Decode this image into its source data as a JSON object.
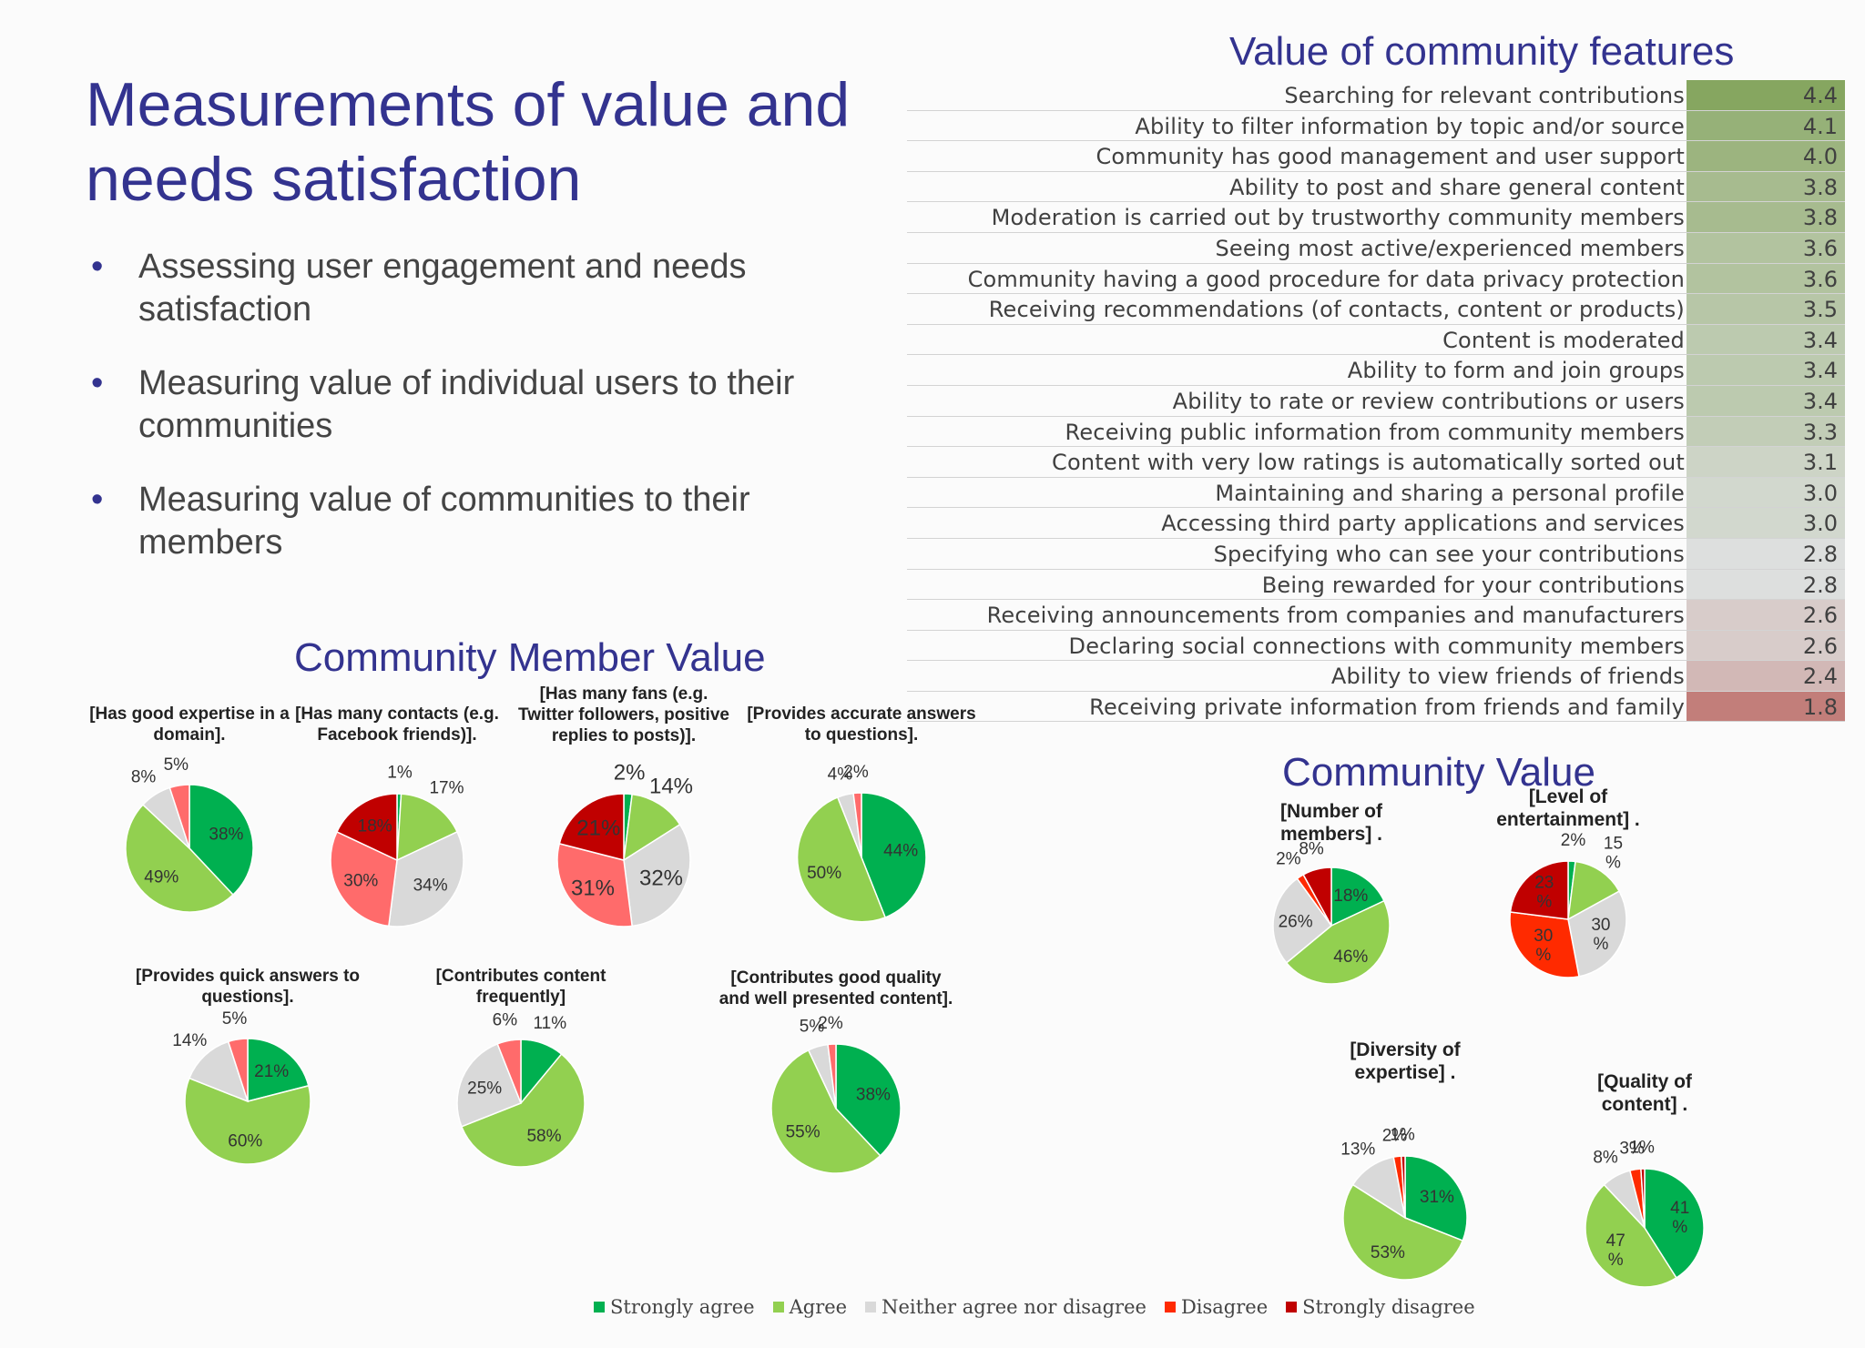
{
  "title": "Measurements of value and needs satisfaction",
  "bullets": [
    "Assessing user engagement and needs satisfaction",
    "Measuring value of individual users to their communities",
    "Measuring value of communities to their members"
  ],
  "colors": {
    "strongly_agree": "#00b050",
    "agree": "#92d050",
    "neutral": "#d9d9d9",
    "disagree": "#ff2a00",
    "strongly_disagree": "#c00000",
    "disagree_light": "#ff6b6b",
    "heading": "#33338f"
  },
  "headings": {
    "table": "Value of community features",
    "member": "Community Member Value",
    "community": "Community Value"
  },
  "legend": [
    "Strongly agree",
    "Agree",
    "Neither agree nor disagree",
    "Disagree",
    "Strongly disagree"
  ],
  "chart_data": [
    {
      "type": "table",
      "title": "Value of community features",
      "rows": [
        {
          "label": "Searching for relevant contributions",
          "value": "4.4"
        },
        {
          "label": "Ability to filter information by topic and/or source",
          "value": "4.1"
        },
        {
          "label": "Community has good management and user support",
          "value": "4.0"
        },
        {
          "label": "Ability to post and share general content",
          "value": "3.8"
        },
        {
          "label": "Moderation is carried out by trustworthy community members",
          "value": "3.8"
        },
        {
          "label": "Seeing most active/experienced members",
          "value": "3.6"
        },
        {
          "label": "Community having a good procedure for data privacy protection",
          "value": "3.6"
        },
        {
          "label": "Receiving recommendations (of contacts, content or products)",
          "value": "3.5"
        },
        {
          "label": "Content is moderated",
          "value": "3.4"
        },
        {
          "label": "Ability to form and join groups",
          "value": "3.4"
        },
        {
          "label": "Ability to rate or review contributions or users",
          "value": "3.4"
        },
        {
          "label": "Receiving public information from community members",
          "value": "3.3"
        },
        {
          "label": "Content with very low ratings is automatically sorted out",
          "value": "3.1"
        },
        {
          "label": "Maintaining and sharing a personal profile",
          "value": "3.0"
        },
        {
          "label": "Accessing third party applications and services",
          "value": "3.0"
        },
        {
          "label": "Specifying who can see your contributions",
          "value": "2.8"
        },
        {
          "label": "Being rewarded for your contributions",
          "value": "2.8"
        },
        {
          "label": "Receiving announcements from companies and manufacturers",
          "value": "2.6"
        },
        {
          "label": "Declaring social connections with community members",
          "value": "2.6"
        },
        {
          "label": "Ability to view friends of friends",
          "value": "2.4"
        },
        {
          "label": "Receiving private information from friends and family",
          "value": "1.8"
        }
      ]
    },
    {
      "type": "pie",
      "group": "Community Member Value",
      "title": [
        "[Has good expertise in a",
        "domain]."
      ],
      "slices": [
        {
          "category": "Strongly agree",
          "value": 38,
          "label": "38%"
        },
        {
          "category": "Agree",
          "value": 49,
          "label": "49%"
        },
        {
          "category": "Neither agree nor disagree",
          "value": 8,
          "label": "8%"
        },
        {
          "category": "Disagree",
          "value": 5,
          "label": "5%"
        }
      ]
    },
    {
      "type": "pie",
      "group": "Community Member Value",
      "title": [
        "[Has many contacts (e.g.",
        "Facebook friends)]."
      ],
      "slices": [
        {
          "category": "Strongly agree",
          "value": 1,
          "label": "1%"
        },
        {
          "category": "Agree",
          "value": 17,
          "label": "17%"
        },
        {
          "category": "Neither agree nor disagree",
          "value": 34,
          "label": "34%"
        },
        {
          "category": "Disagree",
          "value": 30,
          "label": "30%"
        },
        {
          "category": "Strongly disagree",
          "value": 18,
          "label": "18%"
        }
      ]
    },
    {
      "type": "pie",
      "group": "Community Member Value",
      "title": [
        "[Has many fans (e.g.",
        "Twitter followers, positive",
        "replies to posts)]."
      ],
      "slices": [
        {
          "category": "Strongly agree",
          "value": 2,
          "label": "2%"
        },
        {
          "category": "Agree",
          "value": 14,
          "label": "14%"
        },
        {
          "category": "Neither agree nor disagree",
          "value": 32,
          "label": "32%"
        },
        {
          "category": "Disagree",
          "value": 31,
          "label": "31%"
        },
        {
          "category": "Strongly disagree",
          "value": 21,
          "label": "21%"
        }
      ]
    },
    {
      "type": "pie",
      "group": "Community Member Value",
      "title": [
        "[Provides accurate answers",
        "to questions]."
      ],
      "slices": [
        {
          "category": "Strongly agree",
          "value": 44,
          "label": "44%"
        },
        {
          "category": "Agree",
          "value": 50,
          "label": "50%"
        },
        {
          "category": "Neither agree nor disagree",
          "value": 4,
          "label": "4%"
        },
        {
          "category": "Disagree",
          "value": 2,
          "label": "2%"
        }
      ]
    },
    {
      "type": "pie",
      "group": "Community Member Value",
      "title": [
        "[Provides quick answers to",
        "questions]."
      ],
      "slices": [
        {
          "category": "Strongly agree",
          "value": 21,
          "label": "21%"
        },
        {
          "category": "Agree",
          "value": 60,
          "label": "60%"
        },
        {
          "category": "Neither agree nor disagree",
          "value": 14,
          "label": "14%"
        },
        {
          "category": "Disagree",
          "value": 5,
          "label": "5%"
        }
      ]
    },
    {
      "type": "pie",
      "group": "Community Member Value",
      "title": [
        "[Contributes content",
        "frequently]"
      ],
      "slices": [
        {
          "category": "Strongly agree",
          "value": 11,
          "label": "11%"
        },
        {
          "category": "Agree",
          "value": 58,
          "label": "58%"
        },
        {
          "category": "Neither agree nor disagree",
          "value": 25,
          "label": "25%"
        },
        {
          "category": "Disagree",
          "value": 6,
          "label": "6%"
        }
      ]
    },
    {
      "type": "pie",
      "group": "Community Member Value",
      "title": [
        "[Contributes good quality",
        "and well presented content]."
      ],
      "slices": [
        {
          "category": "Strongly agree",
          "value": 38,
          "label": "38%"
        },
        {
          "category": "Agree",
          "value": 55,
          "label": "55%"
        },
        {
          "category": "Neither agree nor disagree",
          "value": 5,
          "label": "5%"
        },
        {
          "category": "Disagree",
          "value": 2,
          "label": "2%"
        }
      ]
    },
    {
      "type": "pie",
      "group": "Community Value",
      "title": [
        "[Number of",
        "members] ."
      ],
      "slices": [
        {
          "category": "Strongly agree",
          "value": 18,
          "label": "18%"
        },
        {
          "category": "Agree",
          "value": 46,
          "label": "46%"
        },
        {
          "category": "Neither agree nor disagree",
          "value": 26,
          "label": "26%"
        },
        {
          "category": "Disagree",
          "value": 2,
          "label": "2%"
        },
        {
          "category": "Strongly disagree",
          "value": 8,
          "label": "8%"
        }
      ]
    },
    {
      "type": "pie",
      "group": "Community Value",
      "title": [
        "[Level of",
        "entertainment] ."
      ],
      "slices": [
        {
          "category": "Strongly agree",
          "value": 2,
          "label": "2%"
        },
        {
          "category": "Agree",
          "value": 15,
          "label": "15 %"
        },
        {
          "category": "Neither agree nor disagree",
          "value": 30,
          "label": "30 %"
        },
        {
          "category": "Disagree",
          "value": 30,
          "label": "30 %"
        },
        {
          "category": "Strongly disagree",
          "value": 23,
          "label": "23 %"
        }
      ]
    },
    {
      "type": "pie",
      "group": "Community Value",
      "title": [
        "[Diversity of",
        "expertise] ."
      ],
      "slices": [
        {
          "category": "Strongly agree",
          "value": 31,
          "label": "31%"
        },
        {
          "category": "Agree",
          "value": 53,
          "label": "53%"
        },
        {
          "category": "Neither agree nor disagree",
          "value": 13,
          "label": "13%"
        },
        {
          "category": "Disagree",
          "value": 2,
          "label": "2%"
        },
        {
          "category": "Strongly disagree",
          "value": 1,
          "label": "1%"
        }
      ]
    },
    {
      "type": "pie",
      "group": "Community Value",
      "title": [
        "[Quality of",
        "content] ."
      ],
      "slices": [
        {
          "category": "Strongly agree",
          "value": 41,
          "label": "41 %"
        },
        {
          "category": "Agree",
          "value": 47,
          "label": "47 %"
        },
        {
          "category": "Neither agree nor disagree",
          "value": 8,
          "label": "8%"
        },
        {
          "category": "Disagree",
          "value": 3,
          "label": "3%"
        },
        {
          "category": "Strongly disagree",
          "value": 1,
          "label": "1%"
        }
      ]
    }
  ]
}
